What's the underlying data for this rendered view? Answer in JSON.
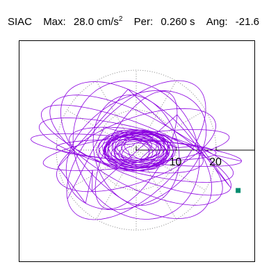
{
  "header": {
    "station": "SIAC",
    "max_label": "Max:",
    "max_value": "28.0",
    "max_unit": "cm/s",
    "max_unit_power": "2",
    "per_label": "Per:",
    "per_value": "0.260 s",
    "ang_label": "Ang:",
    "ang_value": "-21.6"
  },
  "colors": {
    "trace": "#8b00e0",
    "marker": "#008c6e",
    "grid": "#888888",
    "axis": "#000000"
  },
  "chart_data": {
    "type": "line",
    "title": "",
    "xlabel": "",
    "ylabel": "",
    "tick_labels": [
      "10",
      "20"
    ],
    "grid_circles": [
      10,
      20
    ],
    "grid": true,
    "max": 28.0,
    "period": 0.26,
    "angle": -21.6,
    "loops": [
      {
        "a": 26.5,
        "b": 3.0,
        "rot": -6
      },
      {
        "a": 25.0,
        "b": 5.5,
        "rot": -14
      },
      {
        "a": 24.0,
        "b": 9.0,
        "rot": -28
      },
      {
        "a": 22.5,
        "b": 12.0,
        "rot": -40
      },
      {
        "a": 21.0,
        "b": 8.0,
        "rot": 20
      },
      {
        "a": 19.0,
        "b": 13.0,
        "rot": 32
      },
      {
        "a": 23.5,
        "b": 4.0,
        "rot": 8
      },
      {
        "a": 18.0,
        "b": 15.0,
        "rot": -60
      },
      {
        "a": 16.5,
        "b": 7.0,
        "rot": 60
      },
      {
        "a": 25.5,
        "b": 6.5,
        "rot": -22
      },
      {
        "a": 20.0,
        "b": 2.5,
        "rot": -2
      },
      {
        "a": 14.0,
        "b": 10.5,
        "rot": -75
      },
      {
        "a": 17.0,
        "b": 5.0,
        "rot": -10
      },
      {
        "a": 22.0,
        "b": 11.0,
        "rot": 45
      }
    ],
    "end_point": {
      "x": 25.5,
      "y": -10.1
    }
  }
}
